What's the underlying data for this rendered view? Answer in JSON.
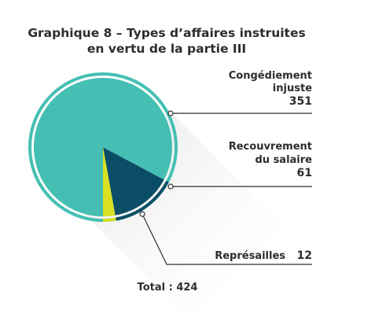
{
  "chart_data": {
    "type": "pie",
    "title_lines": [
      "Graphique 8 – Types d’affaires instruites",
      "en vertu de la partie III"
    ],
    "slices": [
      {
        "label_lines": [
          "Congédiement",
          "injuste"
        ],
        "value": 351,
        "color": "#45bfb3"
      },
      {
        "label_lines": [
          "Recouvrement",
          "du salaire"
        ],
        "value": 61,
        "color": "#0b4d66"
      },
      {
        "label_lines": [
          "Représailles"
        ],
        "value": 12,
        "color": "#d8e021"
      }
    ],
    "total_text": "Total : 424",
    "ring_color": "#45bfb3"
  }
}
